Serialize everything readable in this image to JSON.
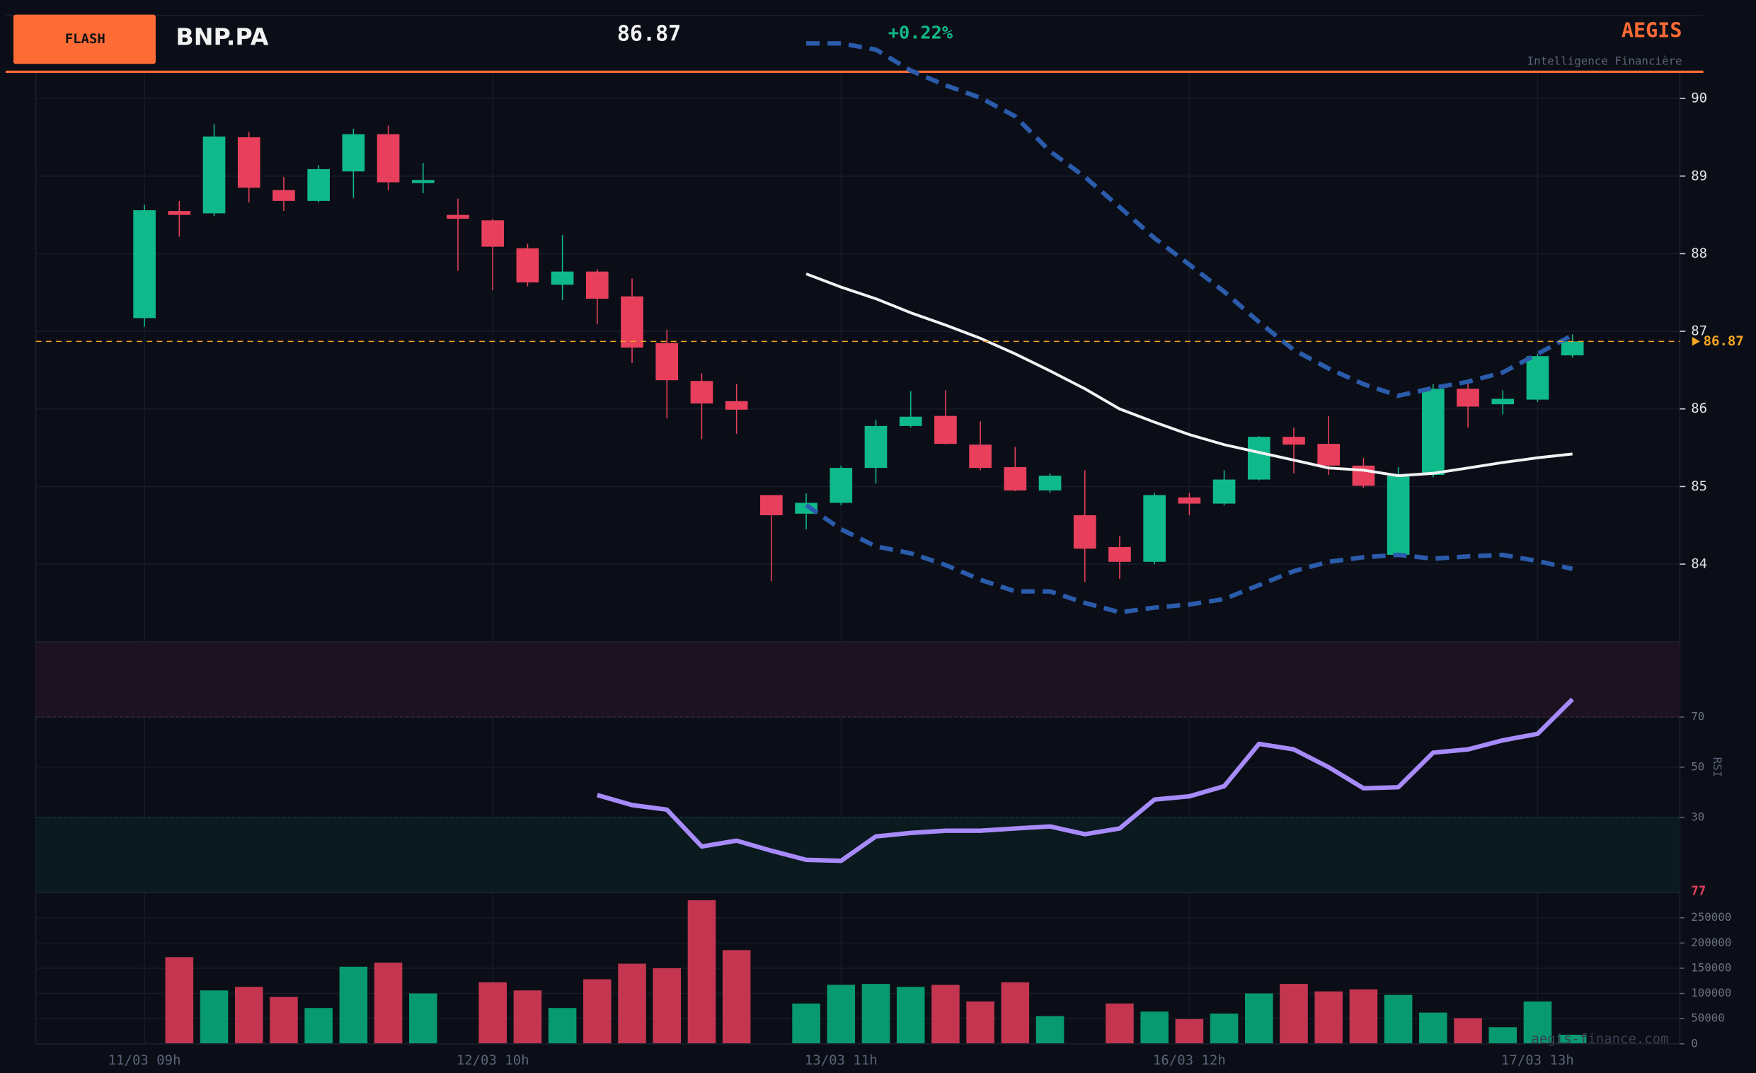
{
  "header": {
    "badge": "FLASH",
    "symbol": "BNP.PA",
    "price": "86.87",
    "change": "+0.22%",
    "brand": "AEGIS",
    "tagline": "Intelligence Financière",
    "watermark": "aegis-finance.com"
  },
  "chart_data": [
    {
      "type": "candlestick",
      "open": [
        87.17,
        88.55,
        88.52,
        89.5,
        88.82,
        88.68,
        89.06,
        89.54,
        88.91,
        88.5,
        88.43,
        88.07,
        87.6,
        87.77,
        87.45,
        86.85,
        86.36,
        86.1,
        84.89,
        84.65,
        84.79,
        85.24,
        85.78,
        85.91,
        85.54,
        85.25,
        84.95,
        84.63,
        84.22,
        84.03,
        84.86,
        84.78,
        85.09,
        85.64,
        85.55,
        85.27,
        84.12,
        85.15,
        86.26,
        86.06,
        86.12,
        86.69
      ],
      "high": [
        88.63,
        88.68,
        89.67,
        89.57,
        88.99,
        89.14,
        89.61,
        89.65,
        89.17,
        88.71,
        88.45,
        88.13,
        88.24,
        87.8,
        87.68,
        87.02,
        86.46,
        86.32,
        84.89,
        84.91,
        85.27,
        85.86,
        86.23,
        86.24,
        85.84,
        85.51,
        85.17,
        85.21,
        84.36,
        84.92,
        84.92,
        85.21,
        85.65,
        85.76,
        85.91,
        85.37,
        85.25,
        86.32,
        86.32,
        86.24,
        86.71,
        86.96
      ],
      "low": [
        87.06,
        88.22,
        88.49,
        88.66,
        88.55,
        88.66,
        88.72,
        88.82,
        88.78,
        87.78,
        87.53,
        87.58,
        87.4,
        87.09,
        86.59,
        85.88,
        85.61,
        85.68,
        83.78,
        84.45,
        84.76,
        85.04,
        85.76,
        85.54,
        85.21,
        84.94,
        84.92,
        83.77,
        83.81,
        84.0,
        84.63,
        84.76,
        85.08,
        85.17,
        85.15,
        84.98,
        84.09,
        85.12,
        85.76,
        85.93,
        86.09,
        86.66
      ],
      "close": [
        88.56,
        88.5,
        89.51,
        88.85,
        88.68,
        89.09,
        89.54,
        88.92,
        88.95,
        88.45,
        88.09,
        87.63,
        87.77,
        87.42,
        86.79,
        86.37,
        86.07,
        85.99,
        84.63,
        84.79,
        85.24,
        85.78,
        85.9,
        85.55,
        85.24,
        84.95,
        85.14,
        84.2,
        84.03,
        84.89,
        84.78,
        85.09,
        85.64,
        85.54,
        85.27,
        85.01,
        85.14,
        86.26,
        86.03,
        86.13,
        86.68,
        86.87
      ],
      "up_color": "#10b98a",
      "down_color": "#e8405c",
      "ylim": [
        83.0,
        90.33
      ],
      "yticks": [
        84,
        85,
        86,
        87,
        88,
        89,
        90
      ],
      "grid": true,
      "bands": {
        "color": "#2b5bab",
        "middle_color": "#f2f2f2",
        "upper": [
          null,
          null,
          null,
          null,
          null,
          null,
          null,
          null,
          null,
          null,
          null,
          null,
          null,
          null,
          null,
          null,
          null,
          null,
          null,
          90.71,
          90.71,
          90.63,
          90.36,
          90.17,
          90.01,
          89.77,
          89.32,
          88.99,
          88.6,
          88.2,
          87.86,
          87.51,
          87.12,
          86.76,
          86.52,
          86.32,
          86.17,
          86.27,
          86.35,
          86.47,
          86.71,
          86.95
        ],
        "middle": [
          null,
          null,
          null,
          null,
          null,
          null,
          null,
          null,
          null,
          null,
          null,
          null,
          null,
          null,
          null,
          null,
          null,
          null,
          null,
          87.74,
          87.57,
          87.42,
          87.24,
          87.08,
          86.91,
          86.71,
          86.49,
          86.26,
          86.0,
          85.83,
          85.67,
          85.54,
          85.44,
          85.34,
          85.24,
          85.21,
          85.14,
          85.17,
          85.24,
          85.31,
          85.37,
          85.42
        ],
        "lower": [
          null,
          null,
          null,
          null,
          null,
          null,
          null,
          null,
          null,
          null,
          null,
          null,
          null,
          null,
          null,
          null,
          null,
          null,
          null,
          84.76,
          84.45,
          84.23,
          84.14,
          83.99,
          83.8,
          83.65,
          83.65,
          83.5,
          83.38,
          83.44,
          83.48,
          83.55,
          83.73,
          83.91,
          84.03,
          84.09,
          84.12,
          84.07,
          84.1,
          84.12,
          84.04,
          83.94
        ]
      },
      "last_price": 86.87,
      "last_price_color": "#f5a623"
    },
    {
      "type": "line",
      "y_label": "RSI",
      "color": "#a78bfa",
      "values": [
        null,
        null,
        null,
        null,
        null,
        null,
        null,
        null,
        null,
        null,
        null,
        null,
        null,
        38.9,
        34.9,
        33.1,
        18.4,
        20.7,
        16.7,
        13.1,
        12.7,
        22.4,
        23.8,
        24.7,
        24.7,
        25.6,
        26.4,
        23.3,
        25.6,
        37.1,
        38.4,
        42.4,
        59.3,
        57.1,
        50.0,
        41.6,
        42.0,
        55.8,
        57.1,
        60.7,
        63.3,
        77.1
      ],
      "value_label": "77",
      "ylim": [
        0,
        100
      ],
      "yticks": [
        30,
        50,
        70
      ],
      "overbought": 70,
      "oversold": 30
    },
    {
      "type": "bar",
      "categories": [
        "11/03 09h",
        null,
        null,
        null,
        null,
        null,
        null,
        null,
        null,
        null,
        "12/03 10h",
        null,
        null,
        null,
        null,
        null,
        null,
        null,
        null,
        null,
        "13/03 11h",
        null,
        null,
        null,
        null,
        null,
        null,
        null,
        null,
        null,
        "16/03 12h",
        null,
        null,
        null,
        null,
        null,
        null,
        null,
        null,
        null,
        "17/03 13h",
        null
      ],
      "values": [
        null,
        172000,
        106000,
        113000,
        93000,
        71000,
        153000,
        161000,
        100000,
        null,
        122000,
        106000,
        71000,
        128000,
        159000,
        150000,
        285000,
        186000,
        null,
        80000,
        117000,
        119000,
        113000,
        117000,
        84000,
        122000,
        55000,
        null,
        80000,
        64000,
        49000,
        60000,
        100000,
        119000,
        104000,
        108000,
        97000,
        62000,
        51000,
        33000,
        84000,
        18000
      ],
      "up_color": "#07996f",
      "down_color": "#c4364f",
      "ylim": [
        0,
        300000
      ],
      "yticks": [
        0,
        50000,
        100000,
        150000,
        200000,
        250000
      ],
      "grid": true
    }
  ]
}
